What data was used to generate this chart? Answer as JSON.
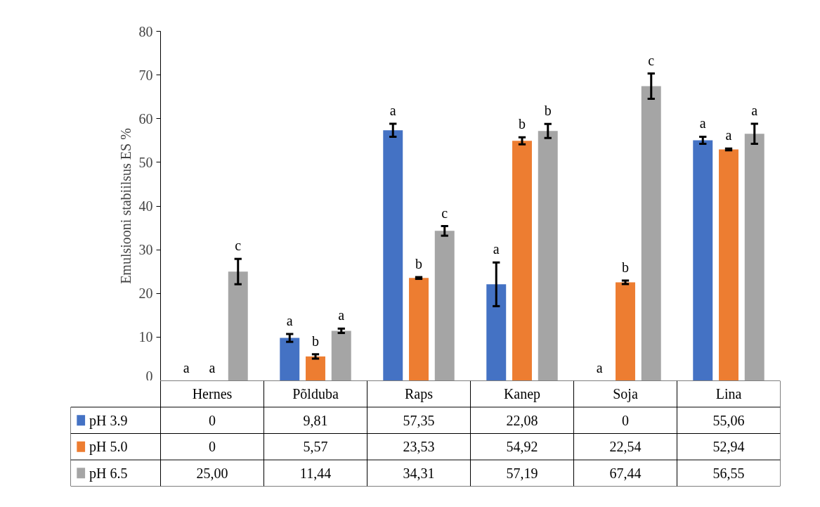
{
  "chart_data": {
    "type": "bar",
    "ylabel": "Emulsiooni stabiilsus ES %",
    "categories": [
      "Hernes",
      "Põlduba",
      "Raps",
      "Kanep",
      "Soja",
      "Lina"
    ],
    "ylim": [
      0,
      80
    ],
    "legend": "bottom left",
    "yticks": [
      0,
      10,
      20,
      30,
      40,
      50,
      60,
      70,
      80
    ],
    "series": [
      {
        "name": "pH 3.9",
        "color": "#4472c4",
        "values": [
          0,
          9.81,
          57.35,
          22.08,
          0,
          55.06
        ],
        "errors": [
          null,
          0.9,
          1.5,
          5.0,
          null,
          0.8
        ],
        "value_labels": [
          "0",
          "9,81",
          "57,35",
          "22,08",
          "0",
          "55,06"
        ]
      },
      {
        "name": "pH 5.0",
        "color": "#ed7d31",
        "values": [
          0,
          5.57,
          23.53,
          54.92,
          22.54,
          52.94
        ],
        "errors": [
          null,
          0.5,
          0.2,
          0.8,
          0.4,
          0.2
        ],
        "value_labels": [
          "0",
          "5,57",
          "23,53",
          "54,92",
          "22,54",
          "52,94"
        ]
      },
      {
        "name": "pH 6.5",
        "color": "#a5a5a5",
        "values": [
          25.0,
          11.44,
          34.31,
          57.19,
          67.44,
          56.55
        ],
        "errors": [
          2.9,
          0.5,
          1.1,
          1.6,
          2.9,
          2.3
        ],
        "value_labels": [
          "25,00",
          "11,44",
          "34,31",
          "57,19",
          "67,44",
          "56,55"
        ]
      }
    ],
    "annotations": [
      "a",
      "a",
      "c",
      "a",
      "b",
      "a",
      "a",
      "b",
      "c",
      "a",
      "b",
      "b",
      "a",
      "b",
      "c",
      "a",
      "a",
      "a"
    ]
  }
}
